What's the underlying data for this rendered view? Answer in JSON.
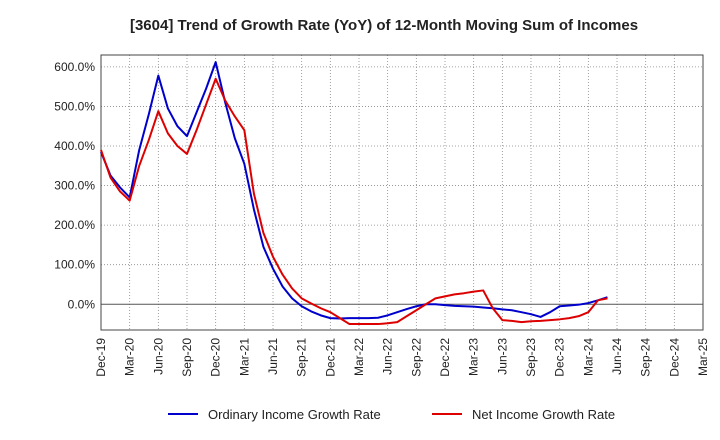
{
  "chart_data": {
    "type": "line",
    "title": "[3604]  Trend of Growth Rate (YoY) of 12-Month Moving Sum of Incomes",
    "xlabel": "",
    "ylabel": "",
    "ylim": [
      -65,
      630
    ],
    "y_ticks": [
      0,
      100,
      200,
      300,
      400,
      500,
      600
    ],
    "y_tick_labels": [
      "0.0%",
      "100.0%",
      "200.0%",
      "300.0%",
      "400.0%",
      "500.0%",
      "600.0%"
    ],
    "x_tick_labels": [
      "Dec-19",
      "Mar-20",
      "Jun-20",
      "Sep-20",
      "Dec-20",
      "Mar-21",
      "Jun-21",
      "Sep-21",
      "Dec-21",
      "Mar-22",
      "Jun-22",
      "Sep-22",
      "Dec-22",
      "Mar-23",
      "Jun-23",
      "Sep-23",
      "Dec-23",
      "Mar-24",
      "Jun-24",
      "Sep-24",
      "Dec-24",
      "Mar-25"
    ],
    "x_start": "2019-12",
    "grid": "dotted",
    "legend_position": "bottom",
    "series": [
      {
        "name": "Ordinary Income Growth Rate",
        "color": "#0000cc",
        "values": [
          385,
          325,
          295,
          270,
          390,
          480,
          578,
          495,
          450,
          425,
          485,
          545,
          612,
          510,
          420,
          355,
          240,
          145,
          90,
          45,
          15,
          -5,
          -18,
          -28,
          -35,
          -36,
          -35,
          -35,
          -35,
          -34,
          -28,
          -20,
          -12,
          -5,
          0,
          0,
          -2,
          -4,
          -5,
          -6,
          -8,
          -10,
          -13,
          -15,
          -20,
          -25,
          -32,
          -20,
          -5,
          -3,
          -1,
          3,
          10,
          18
        ]
      },
      {
        "name": "Net Income Growth Rate",
        "color": "#dd0000",
        "values": [
          390,
          320,
          285,
          262,
          350,
          415,
          488,
          432,
          400,
          380,
          440,
          505,
          570,
          515,
          475,
          440,
          280,
          180,
          120,
          75,
          40,
          15,
          2,
          -10,
          -20,
          -35,
          -50,
          -50,
          -50,
          -50,
          -48,
          -45,
          -30,
          -15,
          0,
          15,
          20,
          25,
          28,
          32,
          35,
          -10,
          -40,
          -42,
          -45,
          -43,
          -42,
          -40,
          -38,
          -35,
          -30,
          -20,
          10,
          15
        ]
      }
    ]
  }
}
